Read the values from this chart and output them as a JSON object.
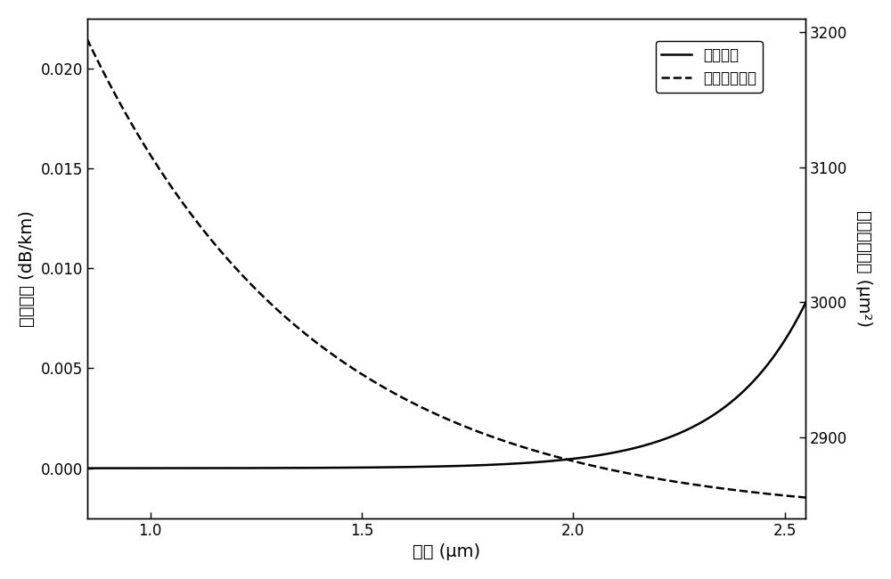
{
  "title": "",
  "xlabel": "波长 (μm)",
  "ylabel_left": "限制损耗 (dB/km)",
  "ylabel_right": "有效模式面积 (μm²)",
  "legend_solid": "限制损耗",
  "legend_dashed": "有效模式面积",
  "xlim": [
    0.85,
    2.55
  ],
  "ylim_left": [
    -0.0025,
    0.0225
  ],
  "ylim_right": [
    2840,
    3210
  ],
  "xticks": [
    1.0,
    1.5,
    2.0,
    2.5
  ],
  "yticks_left": [
    0.0,
    0.005,
    0.01,
    0.015,
    0.02
  ],
  "yticks_right": [
    2900,
    3000,
    3100,
    3200
  ],
  "line_color": "#000000",
  "background_color": "#ffffff",
  "figsize": [
    10.0,
    6.5
  ],
  "dpi": 100,
  "solid_A": 1.2e-06,
  "solid_B": 5.2,
  "solid_x0": 0.85,
  "dashed_base": 2840,
  "dashed_amp": 355,
  "dashed_decay": 1.85,
  "dashed_x0": 0.85
}
